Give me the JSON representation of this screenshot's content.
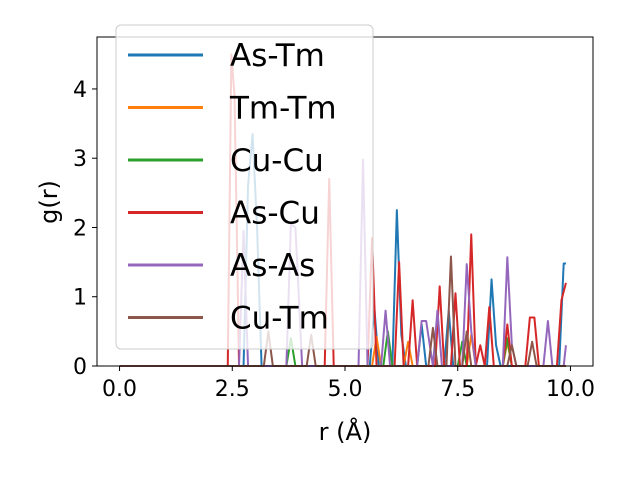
{
  "chart_data": {
    "type": "line",
    "xlabel": "r (Å)",
    "ylabel": "g(r)",
    "xlim": [
      -0.5,
      10.5
    ],
    "ylim": [
      0,
      4.75
    ],
    "xticks": [
      {
        "value": 0.0,
        "label": "0.0"
      },
      {
        "value": 2.5,
        "label": "2.5"
      },
      {
        "value": 5.0,
        "label": "5.0"
      },
      {
        "value": 7.5,
        "label": "7.5"
      },
      {
        "value": 10.0,
        "label": "10.0"
      }
    ],
    "yticks": [
      {
        "value": 0,
        "label": "0"
      },
      {
        "value": 1,
        "label": "1"
      },
      {
        "value": 2,
        "label": "2"
      },
      {
        "value": 3,
        "label": "3"
      },
      {
        "value": 4,
        "label": "4"
      }
    ],
    "legend_position": "upper-left",
    "grid": false,
    "series": [
      {
        "name": "As-Tm",
        "color": "#1f77b4",
        "x": [
          0,
          2.75,
          2.85,
          2.95,
          3.05,
          3.15,
          5.55,
          5.65,
          5.75,
          6.05,
          6.15,
          6.25,
          6.35,
          6.6,
          6.7,
          6.8,
          7.2,
          7.3,
          7.4,
          8.15,
          8.25,
          8.35,
          8.45,
          9.75,
          9.85,
          9.9
        ],
        "y": [
          0,
          0,
          2.6,
          3.35,
          2.0,
          0,
          0,
          0.85,
          0,
          0,
          2.25,
          0.45,
          0,
          0,
          0.6,
          0,
          0,
          0.8,
          0,
          0,
          1.25,
          0.3,
          0,
          0,
          1.48,
          1.48
        ]
      },
      {
        "name": "Tm-Tm",
        "color": "#ff7f0e",
        "x": [
          0,
          5.6,
          5.7,
          5.8,
          6.3,
          6.4,
          6.5,
          7.7,
          7.8,
          7.9,
          8.5,
          8.6,
          8.7,
          9.9
        ],
        "y": [
          0,
          0,
          0.42,
          0,
          0,
          0.35,
          0,
          0,
          0.45,
          0,
          0,
          0.35,
          0,
          0
        ]
      },
      {
        "name": "Cu-Cu",
        "color": "#2ca02c",
        "x": [
          0,
          3.7,
          3.8,
          3.9,
          5.85,
          5.95,
          6.05,
          7.5,
          7.6,
          7.7,
          8.5,
          8.6,
          8.7,
          9.9
        ],
        "y": [
          0,
          0,
          0.4,
          0,
          0,
          0.5,
          0,
          0,
          0.35,
          0,
          0,
          0.4,
          0,
          0
        ]
      },
      {
        "name": "As-Cu",
        "color": "#d62728",
        "x": [
          0,
          2.4,
          2.48,
          2.55,
          2.65,
          4.55,
          4.65,
          4.75,
          5.5,
          5.6,
          5.7,
          6.1,
          6.2,
          6.3,
          6.4,
          6.5,
          6.6,
          6.7,
          7.0,
          7.1,
          7.2,
          7.35,
          7.45,
          7.55,
          7.7,
          7.8,
          7.9,
          8.0,
          8.1,
          8.2,
          8.3,
          8.5,
          8.6,
          8.7,
          9.0,
          9.1,
          9.2,
          9.3,
          9.7,
          9.8,
          9.9
        ],
        "y": [
          0,
          0,
          4.5,
          3.9,
          0,
          0,
          2.7,
          0,
          0,
          1.85,
          0,
          0,
          1.5,
          0,
          0,
          0.95,
          0,
          0,
          0,
          1.15,
          0,
          0,
          1.05,
          0,
          0,
          1.9,
          0,
          0.3,
          0,
          0.85,
          0,
          0,
          0.6,
          0,
          0,
          0.7,
          0.7,
          0,
          0,
          0.95,
          1.2
        ]
      },
      {
        "name": "As-As",
        "color": "#9467bd",
        "x": [
          0,
          2.65,
          2.75,
          2.85,
          3.7,
          3.8,
          3.9,
          4.05,
          5.3,
          5.4,
          5.5,
          5.8,
          5.9,
          6.0,
          6.6,
          6.7,
          6.8,
          6.95,
          7.05,
          7.15,
          7.6,
          7.7,
          7.8,
          7.9,
          8.5,
          8.6,
          8.7,
          8.8,
          8.9,
          9.4,
          9.5,
          9.6,
          9.85,
          9.9
        ],
        "y": [
          0,
          0,
          1.95,
          0,
          0,
          2.05,
          2.0,
          0,
          0,
          2.98,
          0,
          0,
          0.8,
          0,
          0,
          0.65,
          0.65,
          0,
          0.8,
          0,
          0,
          1.47,
          0.5,
          0,
          0,
          1.57,
          0.3,
          0,
          0,
          0,
          0.65,
          0,
          0,
          0.3
        ]
      },
      {
        "name": "Cu-Tm",
        "color": "#8c564b",
        "x": [
          0,
          3.2,
          3.3,
          3.4,
          4.15,
          4.25,
          4.35,
          6.85,
          6.95,
          7.05,
          7.25,
          7.35,
          7.45,
          7.6,
          7.7,
          7.8,
          8.6,
          8.7,
          8.8,
          9.05,
          9.15,
          9.25,
          9.9
        ],
        "y": [
          0,
          0,
          0.5,
          0,
          0,
          0.45,
          0,
          0,
          0.55,
          0,
          0,
          1.58,
          0,
          0,
          0.5,
          0,
          0,
          0.3,
          0,
          0,
          0.35,
          0,
          0
        ]
      }
    ]
  }
}
